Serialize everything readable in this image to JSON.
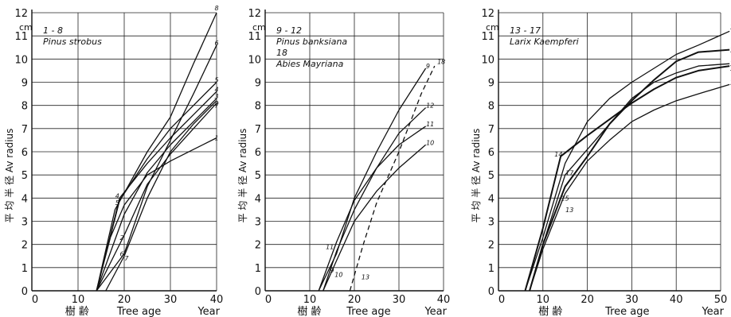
{
  "chart_data": [
    {
      "type": "line",
      "title_lines": [
        "1 - 8",
        "Pinus strobus"
      ],
      "unit": "cm",
      "ylabel": "平 均 半 径   Av radius",
      "xlabel_left": "樹   齢",
      "xlabel": "Tree age",
      "xlabel_right": "Year",
      "xlim": [
        0,
        40
      ],
      "ylim": [
        0,
        12
      ],
      "xticks": [
        0,
        10,
        20,
        30,
        40
      ],
      "yticks": [
        0,
        1,
        2,
        3,
        4,
        5,
        6,
        7,
        8,
        9,
        10,
        11,
        12
      ],
      "grid": true,
      "series": [
        {
          "name": "1",
          "x": [
            14,
            17,
            20,
            25,
            30,
            35,
            40
          ],
          "y": [
            0,
            2.3,
            3.7,
            5.0,
            5.6,
            6.1,
            6.6
          ],
          "style": "solid",
          "labels_at": [
            [
              40,
              6.6
            ]
          ]
        },
        {
          "name": "2",
          "x": [
            14,
            20,
            25,
            30,
            35,
            40
          ],
          "y": [
            0,
            2.4,
            4.6,
            5.9,
            7.0,
            8.1
          ],
          "style": "solid",
          "labels_at": [
            [
              19.5,
              2.3
            ],
            [
              40,
              8.1
            ]
          ]
        },
        {
          "name": "3",
          "x": [
            14,
            20,
            25,
            30,
            35,
            40
          ],
          "y": [
            0,
            3.3,
            5.1,
            6.3,
            7.3,
            8.3
          ],
          "style": "solid",
          "labels_at": [
            [
              40,
              8.4
            ]
          ]
        },
        {
          "name": "4",
          "x": [
            14,
            19,
            25,
            30,
            35,
            40
          ],
          "y": [
            0,
            4.0,
            5.5,
            6.6,
            7.6,
            8.6
          ],
          "style": "solid",
          "labels_at": [
            [
              18.5,
              4.1
            ],
            [
              40,
              8.7
            ]
          ]
        },
        {
          "name": "5",
          "x": [
            14,
            19,
            25,
            30,
            35,
            40
          ],
          "y": [
            0,
            3.9,
            5.7,
            7.0,
            8.0,
            9.0
          ],
          "style": "solid",
          "labels_at": [
            [
              18.5,
              3.8
            ],
            [
              40,
              9.1
            ]
          ]
        },
        {
          "name": "6",
          "x": [
            14,
            20,
            25,
            30,
            35,
            40
          ],
          "y": [
            0,
            1.6,
            4.5,
            6.5,
            8.5,
            10.6
          ],
          "style": "solid",
          "labels_at": [
            [
              19.5,
              1.6
            ],
            [
              40,
              10.7
            ]
          ]
        },
        {
          "name": "7",
          "x": [
            16,
            20,
            25,
            30,
            35,
            40
          ],
          "y": [
            0,
            1.5,
            4.0,
            6.0,
            7.2,
            8.2
          ],
          "style": "solid",
          "labels_at": [
            [
              20.5,
              1.4
            ],
            [
              40,
              8.0
            ]
          ]
        },
        {
          "name": "8",
          "x": [
            14,
            18,
            25,
            30,
            35,
            40
          ],
          "y": [
            0,
            3.5,
            6.0,
            7.5,
            9.8,
            12.0
          ],
          "style": "solid",
          "labels_at": [
            [
              40,
              12.2
            ]
          ]
        }
      ]
    },
    {
      "type": "line",
      "title_lines": [
        "9 - 12",
        "Pinus banksiana",
        "18",
        "Abies Mayriana"
      ],
      "unit": "cm",
      "ylabel": "平 均 半 径   Av radius",
      "xlabel_left": "樹   齢",
      "xlabel": "Tree age",
      "xlabel_right": "Year",
      "xlim": [
        0,
        40
      ],
      "ylim": [
        0,
        12
      ],
      "xticks": [
        0,
        10,
        20,
        30,
        40
      ],
      "yticks": [
        0,
        1,
        2,
        3,
        4,
        5,
        6,
        7,
        8,
        9,
        10,
        11,
        12
      ],
      "grid": true,
      "series": [
        {
          "name": "9",
          "x": [
            12,
            16,
            20,
            25,
            30,
            36
          ],
          "y": [
            0,
            1.6,
            4.0,
            6.0,
            7.8,
            9.6
          ],
          "style": "solid",
          "labels_at": [
            [
              15,
              0.9
            ],
            [
              36.5,
              9.7
            ]
          ]
        },
        {
          "name": "10",
          "x": [
            13,
            16,
            20,
            25,
            30,
            36
          ],
          "y": [
            0,
            1.3,
            3.0,
            4.3,
            5.3,
            6.3
          ],
          "style": "solid",
          "labels_at": [
            [
              16.5,
              0.7
            ],
            [
              37,
              6.4
            ]
          ]
        },
        {
          "name": "11",
          "x": [
            12,
            16,
            20,
            25,
            30,
            36
          ],
          "y": [
            0,
            2.1,
            3.9,
            5.3,
            6.3,
            7.1
          ],
          "style": "solid",
          "labels_at": [
            [
              14.5,
              1.9
            ],
            [
              37,
              7.2
            ]
          ]
        },
        {
          "name": "12",
          "x": [
            13,
            16,
            20,
            25,
            30,
            36
          ],
          "y": [
            0,
            1.7,
            3.5,
            5.3,
            6.8,
            7.9
          ],
          "style": "solid",
          "labels_at": [
            [
              37,
              8.0
            ]
          ]
        },
        {
          "name": "13",
          "x": [
            19,
            22,
            25,
            30,
            35,
            38
          ],
          "y": [
            0,
            2.0,
            3.8,
            6.0,
            8.5,
            9.7
          ],
          "style": "dashed",
          "labels_at": [
            [
              22.5,
              0.6
            ]
          ]
        },
        {
          "name": "18",
          "x": [
            38
          ],
          "y": [
            9.7
          ],
          "style": "label-only",
          "labels_at": [
            [
              39.5,
              9.9
            ]
          ]
        }
      ]
    },
    {
      "type": "line",
      "title_lines": [
        "13 - 17",
        "Larix Kaempferi"
      ],
      "unit": "cm",
      "ylabel": "平 均 半 径   Av radius",
      "xlabel_left": "樹   齢",
      "xlabel": "Tree age",
      "xlabel_right": "Year",
      "xlim": [
        0,
        50
      ],
      "ylim": [
        0,
        12
      ],
      "xticks": [
        0,
        10,
        20,
        30,
        40,
        50
      ],
      "yticks": [
        0,
        1,
        2,
        3,
        4,
        5,
        6,
        7,
        8,
        9,
        10,
        11,
        12
      ],
      "grid": true,
      "series": [
        {
          "name": "13",
          "x": [
            7,
            10,
            15,
            20,
            25,
            30,
            35,
            40,
            45,
            52
          ],
          "y": [
            0,
            1.8,
            4.2,
            5.6,
            6.5,
            7.3,
            7.8,
            8.2,
            8.5,
            8.9
          ],
          "style": "solid",
          "labels_at": [
            [
              16,
              3.5
            ],
            [
              53,
              9.0
            ]
          ]
        },
        {
          "name": "14",
          "x": [
            6,
            10,
            14,
            20,
            25,
            30,
            35,
            40,
            45,
            52
          ],
          "y": [
            0,
            2.7,
            5.8,
            6.7,
            7.4,
            8.1,
            8.7,
            9.2,
            9.5,
            9.7
          ],
          "style": "solid",
          "labels_at": [
            [
              13.5,
              5.9
            ],
            [
              53,
              9.6
            ]
          ]
        },
        {
          "name": "15",
          "x": [
            7,
            10,
            15,
            20,
            25,
            30,
            35,
            40,
            45,
            52
          ],
          "y": [
            0,
            2.0,
            4.5,
            5.8,
            7.2,
            8.2,
            9.1,
            9.9,
            10.3,
            10.4
          ],
          "style": "solid",
          "labels_at": [
            [
              15,
              4.0
            ],
            [
              53,
              10.4
            ]
          ]
        },
        {
          "name": "16",
          "x": [
            6,
            10,
            15,
            20,
            25,
            30,
            35,
            40,
            45,
            52
          ],
          "y": [
            0,
            2.3,
            5.5,
            7.3,
            8.3,
            9.0,
            9.6,
            10.2,
            10.6,
            11.2
          ],
          "style": "solid",
          "labels_at": [
            [
              53,
              11.4
            ]
          ]
        },
        {
          "name": "17",
          "x": [
            7,
            10,
            15,
            20,
            25,
            30,
            35,
            40,
            45,
            52
          ],
          "y": [
            0,
            2.0,
            5.0,
            6.1,
            7.2,
            8.3,
            9.0,
            9.4,
            9.7,
            9.8
          ],
          "style": "solid",
          "labels_at": [
            [
              16,
              5.1
            ],
            [
              53,
              9.8
            ]
          ]
        }
      ]
    }
  ]
}
